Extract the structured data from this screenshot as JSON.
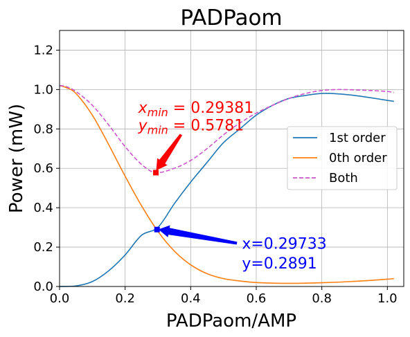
{
  "chart_data": {
    "type": "line",
    "title": "PADPaom",
    "xlabel": "PADPaom/AMP",
    "ylabel": "Power (mW)",
    "xlim": [
      0.0,
      1.05
    ],
    "ylim": [
      0.0,
      1.3
    ],
    "xticks": [
      0.0,
      0.2,
      0.4,
      0.6,
      0.8,
      1.0
    ],
    "xtick_labels": [
      "0.0",
      "0.2",
      "0.4",
      "0.6",
      "0.8",
      "1.0"
    ],
    "yticks": [
      0.0,
      0.2,
      0.4,
      0.6,
      0.8,
      1.0,
      1.2
    ],
    "ytick_labels": [
      "0.0",
      "0.2",
      "0.4",
      "0.6",
      "0.8",
      "1.0",
      "1.2"
    ],
    "grid": true,
    "legend_position": "center-right",
    "series": [
      {
        "name": "1st order",
        "color": "#1f77b4",
        "style": "solid",
        "x": [
          0.0,
          0.05,
          0.1,
          0.15,
          0.2,
          0.25,
          0.3,
          0.35,
          0.4,
          0.45,
          0.5,
          0.55,
          0.6,
          0.65,
          0.7,
          0.75,
          0.8,
          0.85,
          0.9,
          0.95,
          1.0,
          1.02
        ],
        "y": [
          0.0,
          0.003,
          0.025,
          0.08,
          0.16,
          0.26,
          0.3,
          0.42,
          0.53,
          0.63,
          0.73,
          0.8,
          0.87,
          0.92,
          0.955,
          0.97,
          0.98,
          0.978,
          0.97,
          0.958,
          0.945,
          0.94
        ]
      },
      {
        "name": "0th order",
        "color": "#ff7f0e",
        "style": "solid",
        "x": [
          0.0,
          0.02,
          0.05,
          0.1,
          0.15,
          0.2,
          0.25,
          0.3,
          0.35,
          0.4,
          0.45,
          0.5,
          0.55,
          0.6,
          0.65,
          0.7,
          0.75,
          0.8,
          0.85,
          0.9,
          0.95,
          1.0,
          1.02
        ],
        "y": [
          1.02,
          1.01,
          0.98,
          0.87,
          0.72,
          0.56,
          0.41,
          0.28,
          0.18,
          0.11,
          0.065,
          0.04,
          0.028,
          0.02,
          0.017,
          0.016,
          0.017,
          0.019,
          0.022,
          0.026,
          0.031,
          0.037,
          0.04
        ]
      },
      {
        "name": "Both",
        "color": "#cc55cc",
        "style": "dashed",
        "x": [
          0.0,
          0.02,
          0.05,
          0.1,
          0.15,
          0.2,
          0.25,
          0.29381,
          0.35,
          0.4,
          0.45,
          0.5,
          0.55,
          0.6,
          0.65,
          0.7,
          0.75,
          0.8,
          0.85,
          0.9,
          0.95,
          1.0,
          1.02
        ],
        "y": [
          1.02,
          1.015,
          0.99,
          0.92,
          0.82,
          0.71,
          0.62,
          0.5781,
          0.6,
          0.64,
          0.7,
          0.77,
          0.83,
          0.88,
          0.92,
          0.955,
          0.98,
          0.995,
          1.0,
          0.998,
          0.995,
          0.99,
          0.985
        ]
      }
    ],
    "annotations": [
      {
        "line1": "x_min = 0.29381",
        "line2": "y_min = 0.5781",
        "line1_sym": "x",
        "line1_sub": "min",
        "line1_val": " = 0.29381",
        "line2_sym": "y",
        "line2_sub": "min",
        "line2_val": " = 0.5781",
        "point": [
          0.29381,
          0.5781
        ],
        "text_at": [
          0.24,
          0.84
        ],
        "color": "#ff0000",
        "marker": "square"
      },
      {
        "line1": "x=0.29733",
        "line2": "y=0.2891",
        "point": [
          0.29733,
          0.2891
        ],
        "text_at": [
          0.55,
          0.16
        ],
        "color": "#0000ff",
        "marker": "square"
      }
    ]
  }
}
